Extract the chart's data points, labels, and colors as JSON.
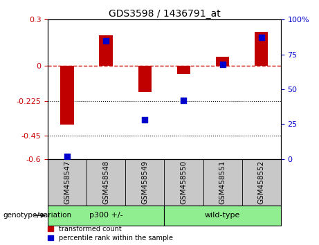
{
  "title": "GDS3598 / 1436791_at",
  "samples": [
    "GSM458547",
    "GSM458548",
    "GSM458549",
    "GSM458550",
    "GSM458551",
    "GSM458552"
  ],
  "red_bars": [
    -0.38,
    0.2,
    -0.17,
    -0.05,
    0.06,
    0.22
  ],
  "blue_dots": [
    2,
    85,
    28,
    42,
    68,
    87
  ],
  "ylim_left": [
    -0.6,
    0.3
  ],
  "yticks_left": [
    -0.6,
    -0.45,
    -0.225,
    0.0,
    0.3
  ],
  "ytick_labels_left": [
    "-0.6",
    "-0.45",
    "-0.225",
    "0",
    "0.3"
  ],
  "ylim_right": [
    0,
    100
  ],
  "yticks_right": [
    0,
    25,
    50,
    75,
    100
  ],
  "ytick_labels_right": [
    "0",
    "25",
    "50",
    "75",
    "100%"
  ],
  "hlines_dotted": [
    -0.225,
    -0.45
  ],
  "hline_dashed": 0.0,
  "group_labels": [
    "p300 +/-",
    "wild-type"
  ],
  "group_colors": [
    "#90EE90",
    "#90EE90"
  ],
  "group_ranges": [
    [
      0,
      2
    ],
    [
      3,
      5
    ]
  ],
  "bar_color": "#C00000",
  "dot_color": "#0000CC",
  "bar_width": 0.35,
  "dot_size": 35,
  "legend_red_label": "transformed count",
  "legend_blue_label": "percentile rank within the sample",
  "xlabel": "genotype/variation",
  "tick_area_color": "#C8C8C8",
  "title_fontsize": 10,
  "tick_label_fontsize": 7.5
}
